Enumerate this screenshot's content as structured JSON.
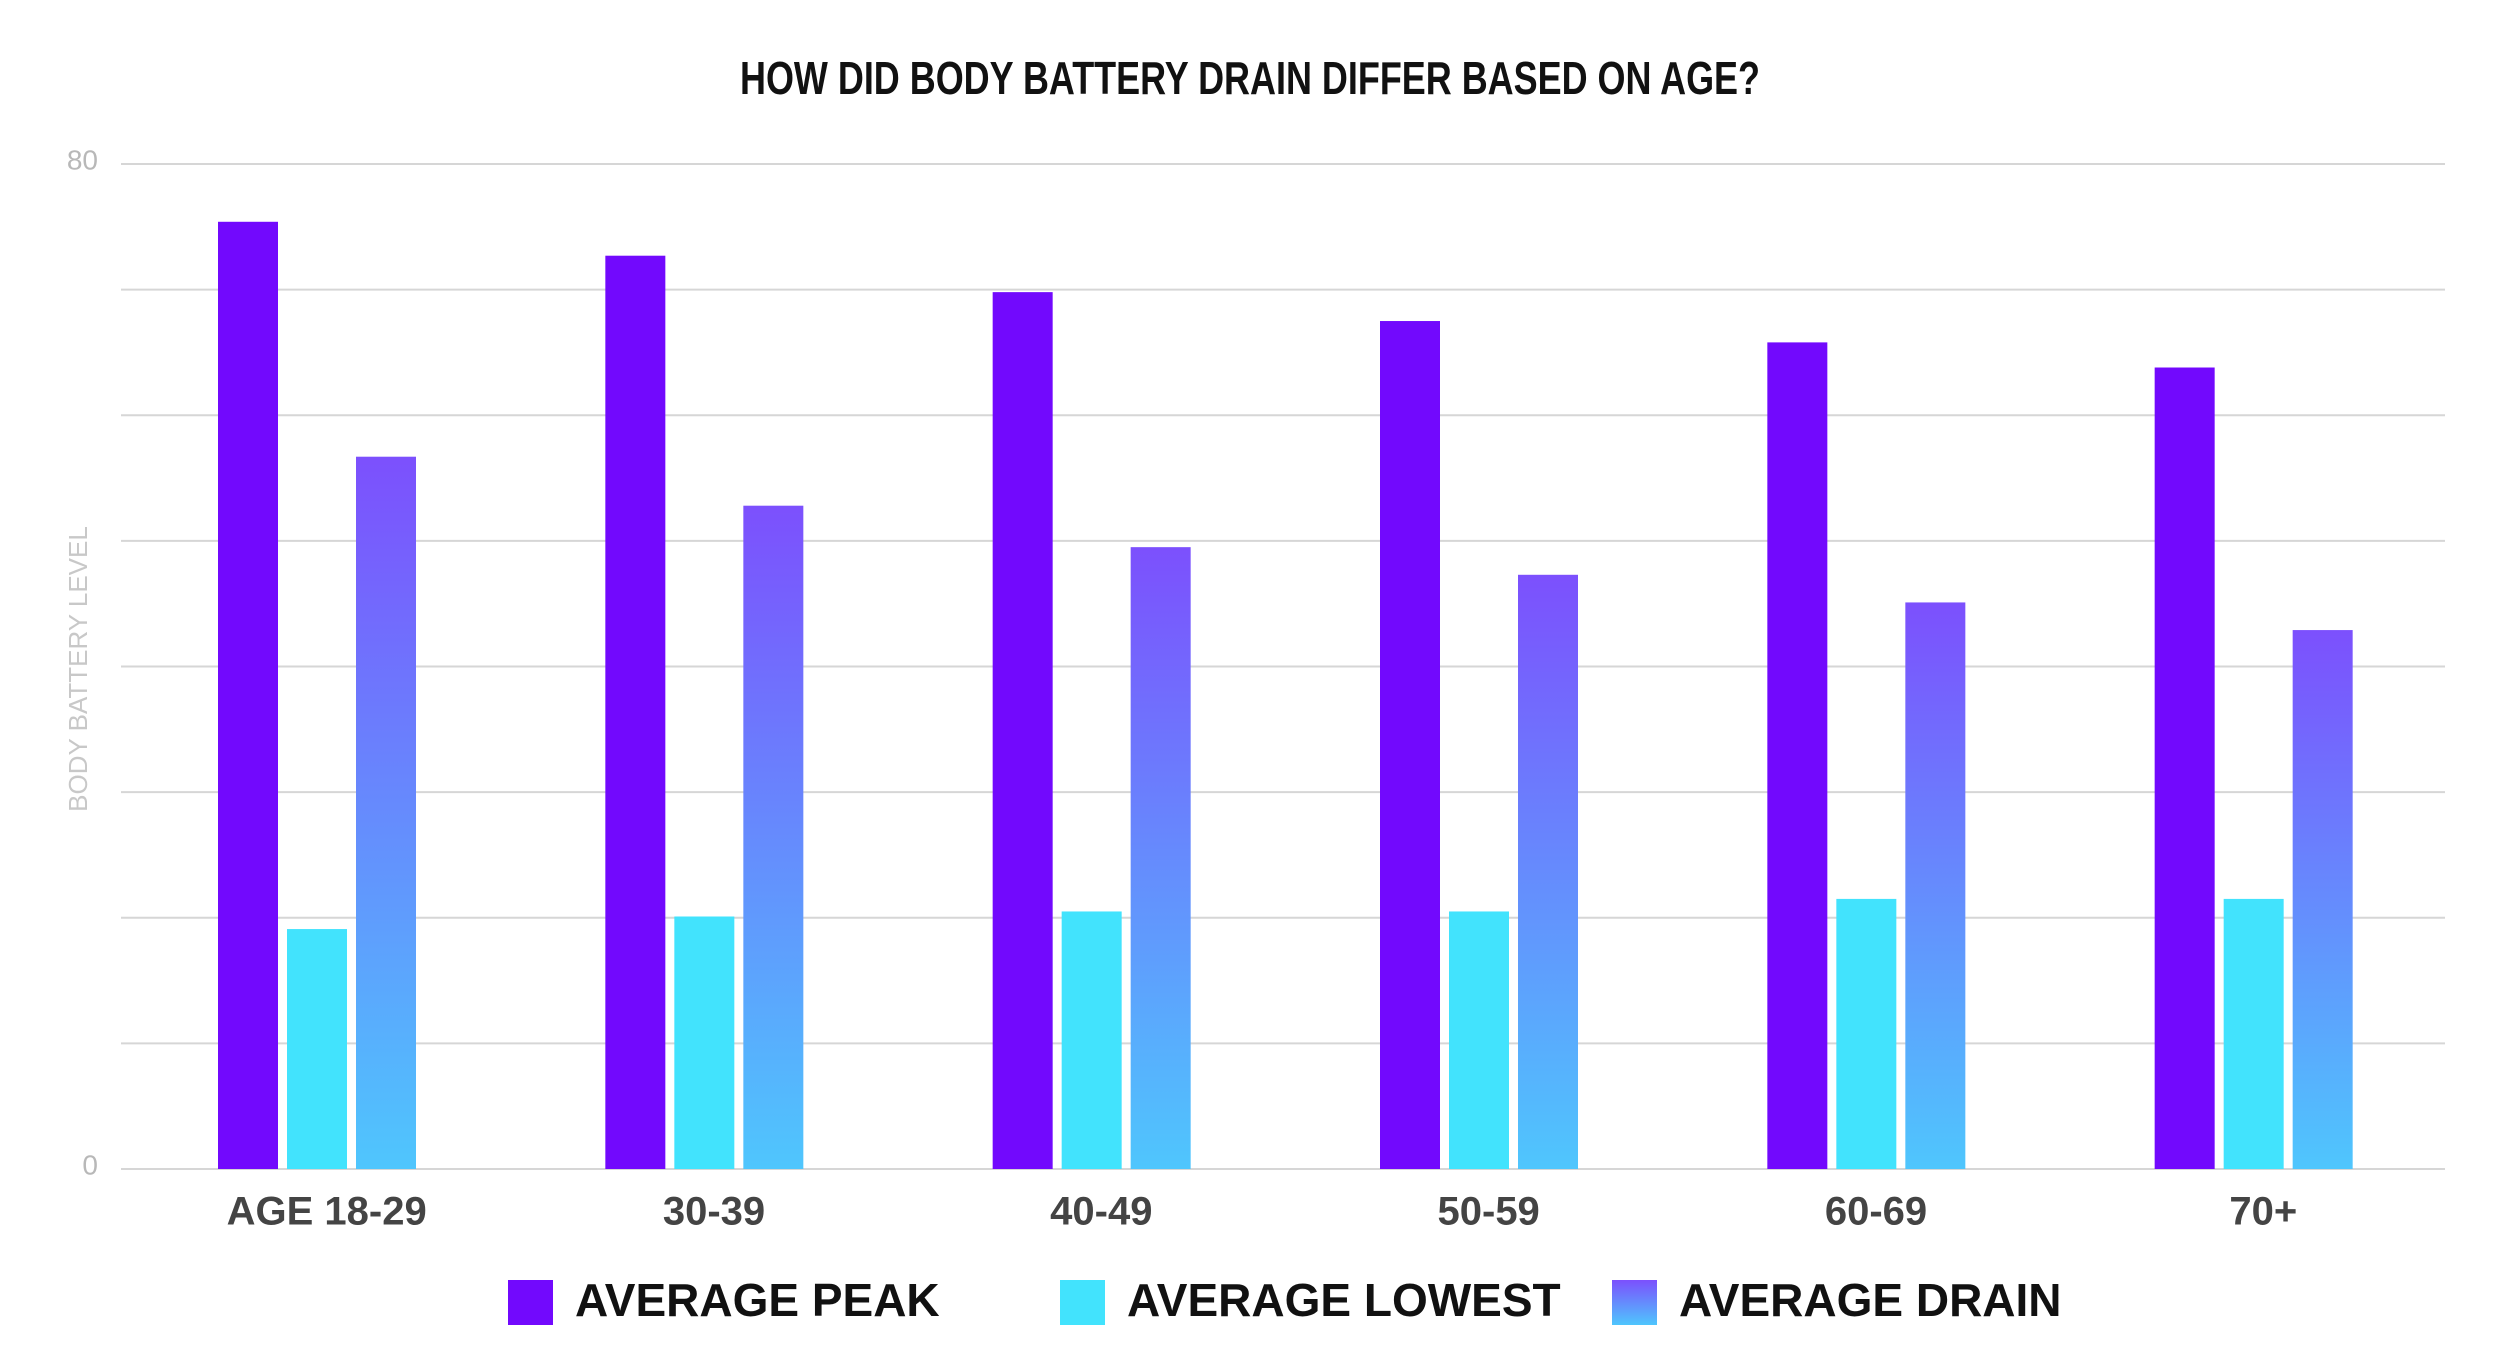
{
  "chart_data": {
    "type": "bar",
    "title": "HOW DID BODY BATTERY DRAIN DIFFER BASED ON AGE?",
    "ylabel": "BODY BATTERY LEVEL",
    "categories": [
      "AGE 18-29",
      "30-39",
      "40-49",
      "50-59",
      "60-69",
      "70+"
    ],
    "series": [
      {
        "name": "AVERAGE PEAK",
        "color": "#7209fd",
        "values": [
          75.4,
          72.7,
          69.8,
          67.5,
          65.8,
          63.8
        ]
      },
      {
        "name": "AVERAGE LOWEST",
        "color": "#42e3fd",
        "values": [
          19.1,
          20.1,
          20.5,
          20.5,
          21.5,
          21.5
        ]
      },
      {
        "name": "AVERAGE DRAIN",
        "color": [
          "#7c50fd",
          "#4fc6fd"
        ],
        "values": [
          56.7,
          52.8,
          49.5,
          47.3,
          45.1,
          42.9
        ]
      }
    ],
    "ylim": [
      0,
      80
    ],
    "yticks": [
      0,
      80
    ],
    "minor_yticks": [
      10,
      20,
      30,
      40,
      50,
      60,
      70
    ],
    "grid": true,
    "legend": "bottom"
  }
}
